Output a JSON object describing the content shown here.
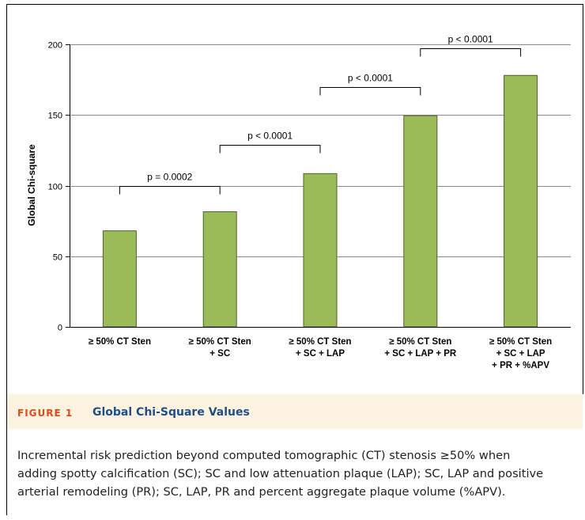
{
  "chart_data": {
    "type": "bar",
    "ylabel": "Global Chi-square",
    "ylim": [
      0,
      200
    ],
    "yticks": [
      0,
      50,
      100,
      150,
      200
    ],
    "grid": true,
    "bar_color": "#9bbb59",
    "bar_edge_color": "#4f6228",
    "categories": [
      [
        "≥ 50% CT Sten"
      ],
      [
        "≥ 50% CT Sten",
        "+ SC"
      ],
      [
        "≥ 50% CT Sten",
        "+ SC + LAP"
      ],
      [
        "≥ 50% CT Sten",
        "+ SC + LAP + PR"
      ],
      [
        "≥ 50% CT Sten",
        "+ SC + LAP",
        "+ PR + %APV"
      ]
    ],
    "values": [
      68,
      81.5,
      108.5,
      149.5,
      178
    ],
    "annotations": [
      {
        "from": 0,
        "to": 1,
        "text": "p = 0.0002",
        "level": 100
      },
      {
        "from": 1,
        "to": 2,
        "text": "p < 0.0001",
        "level": 129
      },
      {
        "from": 2,
        "to": 3,
        "text": "p < 0.0001",
        "level": 170
      },
      {
        "from": 3,
        "to": 4,
        "text": "p < 0.0001",
        "level": 197
      }
    ]
  },
  "caption": {
    "label": "FIGURE 1",
    "title": "Global Chi-Square Values",
    "lines": [
      "Incremental risk prediction beyond computed tomographic (CT) stenosis ≥50% when",
      "adding spotty calcification (SC); SC and low attenuation plaque (LAP); SC, LAP and positive",
      "arterial remodeling (PR); SC, LAP, PR and percent aggregate plaque volume (%APV)."
    ]
  }
}
